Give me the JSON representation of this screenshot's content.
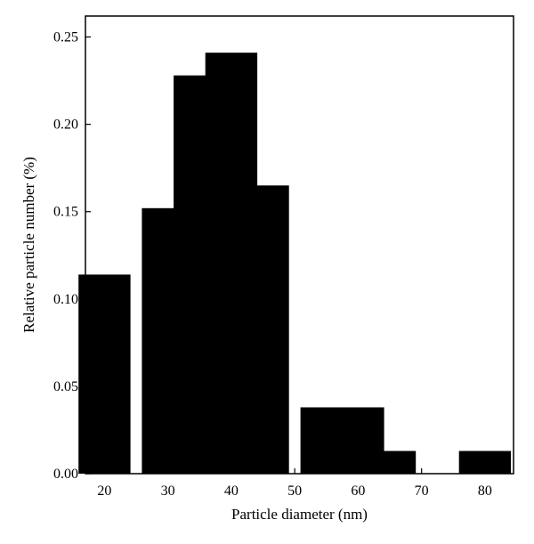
{
  "chart_data": {
    "type": "bar",
    "title": "",
    "xlabel": "Particle diameter (nm)",
    "ylabel": "Relative particle number (%)",
    "x_ticks": [
      20,
      30,
      40,
      50,
      60,
      70,
      80
    ],
    "y_ticks": [
      "0.00",
      "0.05",
      "0.10",
      "0.15",
      "0.20",
      "0.25"
    ],
    "xlim": [
      17,
      84.5
    ],
    "ylim": [
      0,
      0.262
    ],
    "bar_width": 8.2,
    "bars": [
      {
        "x": 20,
        "value": 0.114
      },
      {
        "x": 30,
        "value": 0.152
      },
      {
        "x": 35,
        "value": 0.228
      },
      {
        "x": 40,
        "value": 0.241
      },
      {
        "x": 45,
        "value": 0.165
      },
      {
        "x": 55,
        "value": 0.038
      },
      {
        "x": 60,
        "value": 0.038
      },
      {
        "x": 65,
        "value": 0.013
      },
      {
        "x": 80,
        "value": 0.013
      }
    ],
    "bar_color": "#000000",
    "grid": false,
    "legend": "none"
  }
}
